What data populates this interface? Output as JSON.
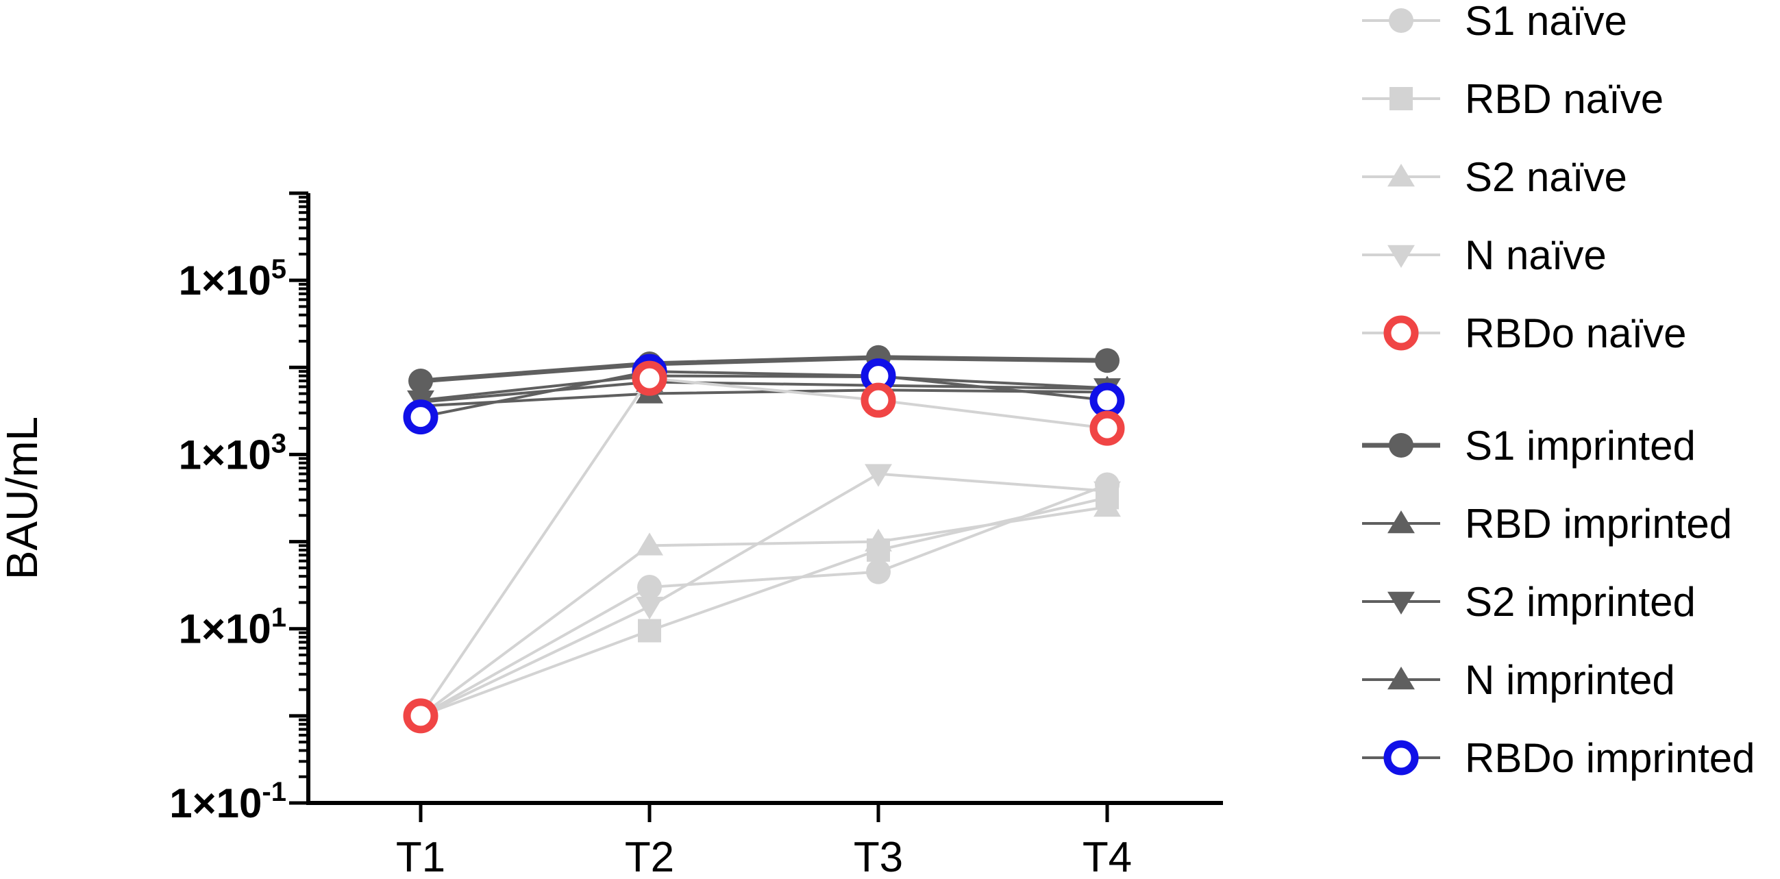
{
  "chart_data": {
    "type": "line",
    "x": [
      "T1",
      "T2",
      "T3",
      "T4"
    ],
    "ylabel": "BAU/mL",
    "yscale": "log",
    "ylim": [
      0.1,
      1000000
    ],
    "yticks": [
      {
        "value": 0.1,
        "mantissa": "1×10",
        "exp": "-1"
      },
      {
        "value": 10,
        "mantissa": "1×10",
        "exp": "1"
      },
      {
        "value": 1000,
        "mantissa": "1×10",
        "exp": "3"
      },
      {
        "value": 100000,
        "mantissa": "1×10",
        "exp": "5"
      }
    ],
    "legend_position": "right",
    "series": [
      {
        "name": "S1 naïve",
        "marker": "circle",
        "color": "#d3d3d3",
        "filled": true,
        "values": [
          1,
          30,
          45,
          450
        ]
      },
      {
        "name": "RBD naïve",
        "marker": "square",
        "color": "#d3d3d3",
        "filled": true,
        "values": [
          1,
          9.5,
          80,
          320
        ]
      },
      {
        "name": "S2 naïve",
        "marker": "triangle-up",
        "color": "#d3d3d3",
        "filled": true,
        "values": [
          1,
          90,
          100,
          250
        ]
      },
      {
        "name": "N naïve",
        "marker": "triangle-down",
        "color": "#d3d3d3",
        "filled": true,
        "values": [
          1,
          18,
          600,
          380
        ]
      },
      {
        "name": "RBDo naïve",
        "marker": "circle",
        "color": "#f04545",
        "filled": false,
        "values": [
          1,
          7500,
          4200,
          2000
        ]
      },
      {
        "name": "S1 imprinted",
        "marker": "circle",
        "color": "#5f5f5f",
        "filled": true,
        "thick": true,
        "values": [
          7000,
          11000,
          13000,
          12000
        ]
      },
      {
        "name": "RBD imprinted",
        "marker": "triangle-up",
        "color": "#5f5f5f",
        "filled": true,
        "values": [
          3600,
          5000,
          5500,
          5200
        ]
      },
      {
        "name": "S2 imprinted",
        "marker": "triangle-down",
        "color": "#5f5f5f",
        "filled": true,
        "values": [
          4200,
          8000,
          7800,
          5800
        ]
      },
      {
        "name": "N imprinted",
        "marker": "triangle-up",
        "color": "#5f5f5f",
        "filled": true,
        "values": [
          4000,
          6800,
          6200,
          5700
        ]
      },
      {
        "name": "RBDo imprinted",
        "marker": "circle",
        "color": "#1010e8",
        "filled": false,
        "values": [
          2700,
          9000,
          8000,
          4200
        ]
      }
    ]
  }
}
